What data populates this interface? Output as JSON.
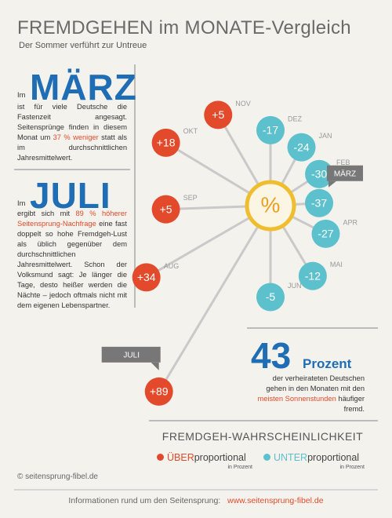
{
  "title": "FREMDGEHEN im MONATE-Vergleich",
  "subtitle": "Der Sommer verführt zur Untreue",
  "maerz": {
    "im": "Im",
    "heading": "MÄRZ",
    "text": [
      "ist für viele Deutsche die Fastenzeit angesagt. Seitensprünge finden in diesem Monat um ",
      "37 % weniger",
      " statt als im durchschnittlichen Jahresmittelwert."
    ]
  },
  "juli": {
    "im": "Im",
    "heading": "JULI",
    "text": [
      "ergibt sich mit ",
      "89 % höherer Seitensprung-Nachfrage",
      " eine fast doppelt so hohe Fremdgeh-Lust als üblich gegenüber dem durchschnittlichen Jahresmittelwert. Schon der Volksmund sagt: Je länger die Tage, desto heißer werden die Nächte – jedoch oftmals nicht mit dem eigenen Lebenspartner."
    ]
  },
  "fact": {
    "number": 43,
    "unit": "Prozent",
    "text": [
      "der verheirateten Deutschen gehen in den Monaten mit den ",
      "meisten Sonnenstunden",
      " häufiger fremd."
    ]
  },
  "chart_data": {
    "type": "radial",
    "center_label": "%",
    "categories": [
      "JAN",
      "FEB",
      "MÄRZ",
      "APR",
      "MAI",
      "JUN",
      "JULI",
      "AUG",
      "SEP",
      "OKT",
      "NOV",
      "DEZ"
    ],
    "values": [
      -24,
      -30,
      -37,
      -27,
      -12,
      -5,
      89,
      34,
      5,
      18,
      5,
      -17
    ],
    "value_labels": [
      "-24",
      "-30",
      "-37",
      "-27",
      "-12",
      "-5",
      "+89",
      "+34",
      "+5",
      "+18",
      "+5",
      "-17"
    ],
    "colors": {
      "positive": "#e24a2b",
      "negative": "#5cc1cc"
    }
  },
  "legend": {
    "title": "FREMDGEH-WAHRSCHEINLICHKEIT",
    "over": [
      "ÜBER",
      "proportional"
    ],
    "under": [
      "UNTER",
      "proportional"
    ],
    "note": "in Prozent"
  },
  "copyright": "© seitensprung-fibel.de",
  "footer": {
    "text": "Informationen rund um den Seitensprung:",
    "link": "www.seitensprung-fibel.de"
  }
}
